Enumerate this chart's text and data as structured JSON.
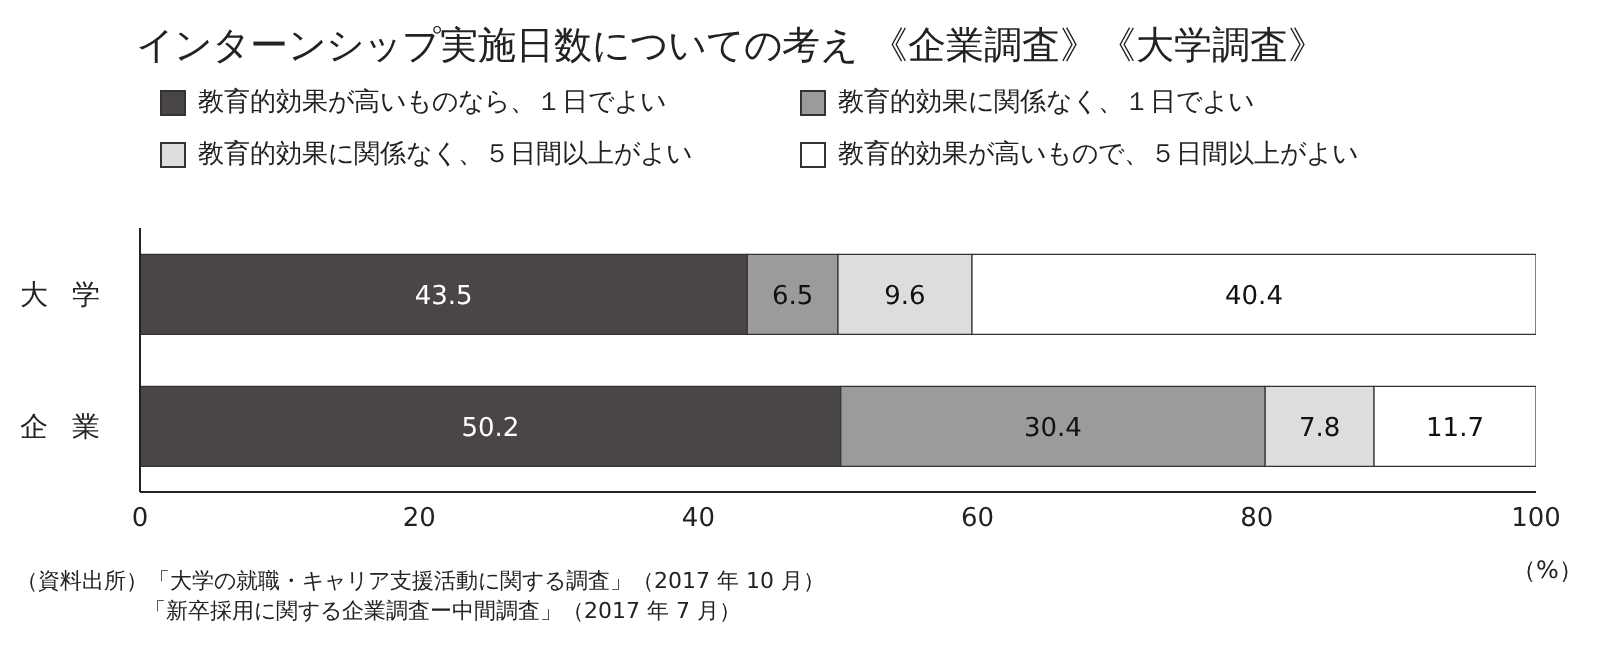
{
  "chart_data": {
    "type": "bar",
    "orientation": "horizontal",
    "stacked": true,
    "title": "インターンシップ実施日数についての考え 《企業調査》《大学調査》",
    "categories": [
      "大学",
      "企業"
    ],
    "series": [
      {
        "name": "教育的効果が高いものなら、１日でよい",
        "color": "#4a4546",
        "values": [
          43.5,
          50.2
        ]
      },
      {
        "name": "教育的効果に関係なく、１日でよい",
        "color": "#9b9b9b",
        "values": [
          6.5,
          30.4
        ]
      },
      {
        "name": "教育的効果に関係なく、５日間以上がよい",
        "color": "#dddddd",
        "values": [
          9.6,
          7.8
        ]
      },
      {
        "name": "教育的効果が高いもので、５日間以上がよい",
        "color": "#ffffff",
        "values": [
          40.4,
          11.7
        ]
      }
    ],
    "xlim": [
      0,
      100
    ],
    "xticks": [
      0,
      20,
      40,
      60,
      80,
      100
    ],
    "xlabel": "（%）",
    "data_labels": true,
    "legend": "top",
    "grid": false,
    "annotations": [
      "（資料出所）「大学の就職・キャリア支援活動に関する調査」（2017 年 10 月）",
      "「新卒採用に関する企業調査ー中間調査」（2017 年 7 月）"
    ]
  }
}
